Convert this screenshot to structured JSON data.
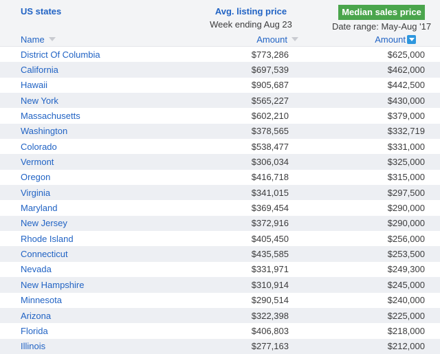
{
  "header": {
    "left_title": "US states",
    "middle": {
      "title": "Avg. listing price",
      "subtitle": "Week ending Aug 23"
    },
    "right": {
      "title": "Median sales price",
      "subtitle": "Date range: May-Aug '17"
    }
  },
  "columns": {
    "name": "Name",
    "avg_amount": "Amount",
    "median_amount": "Amount",
    "sort_icons": {
      "name": "sort-arrow-inactive",
      "avg_amount": "sort-arrow-inactive",
      "median_amount": "sort-arrow-active-desc"
    }
  },
  "rows": [
    {
      "state": "District Of Columbia",
      "avg": "$773,286",
      "median": "$625,000"
    },
    {
      "state": "California",
      "avg": "$697,539",
      "median": "$462,000"
    },
    {
      "state": "Hawaii",
      "avg": "$905,687",
      "median": "$442,500"
    },
    {
      "state": "New York",
      "avg": "$565,227",
      "median": "$430,000"
    },
    {
      "state": "Massachusetts",
      "avg": "$602,210",
      "median": "$379,000"
    },
    {
      "state": "Washington",
      "avg": "$378,565",
      "median": "$332,719"
    },
    {
      "state": "Colorado",
      "avg": "$538,477",
      "median": "$331,000"
    },
    {
      "state": "Vermont",
      "avg": "$306,034",
      "median": "$325,000"
    },
    {
      "state": "Oregon",
      "avg": "$416,718",
      "median": "$315,000"
    },
    {
      "state": "Virginia",
      "avg": "$341,015",
      "median": "$297,500"
    },
    {
      "state": "Maryland",
      "avg": "$369,454",
      "median": "$290,000"
    },
    {
      "state": "New Jersey",
      "avg": "$372,916",
      "median": "$290,000"
    },
    {
      "state": "Rhode Island",
      "avg": "$405,450",
      "median": "$256,000"
    },
    {
      "state": "Connecticut",
      "avg": "$435,585",
      "median": "$253,500"
    },
    {
      "state": "Nevada",
      "avg": "$331,971",
      "median": "$249,300"
    },
    {
      "state": "New Hampshire",
      "avg": "$310,914",
      "median": "$245,000"
    },
    {
      "state": "Minnesota",
      "avg": "$290,514",
      "median": "$240,000"
    },
    {
      "state": "Arizona",
      "avg": "$322,398",
      "median": "$225,000"
    },
    {
      "state": "Florida",
      "avg": "$406,803",
      "median": "$218,000"
    },
    {
      "state": "Illinois",
      "avg": "$277,163",
      "median": "$212,000"
    }
  ],
  "colors": {
    "link_blue": "#2163c4",
    "badge_green": "#4aa54c",
    "sort_active_blue": "#2e97de",
    "sort_inactive": "#c9cbd1",
    "stripe": "#edeff3",
    "header_bg": "#f3f4f6",
    "text_dark": "#3b3b3c"
  }
}
